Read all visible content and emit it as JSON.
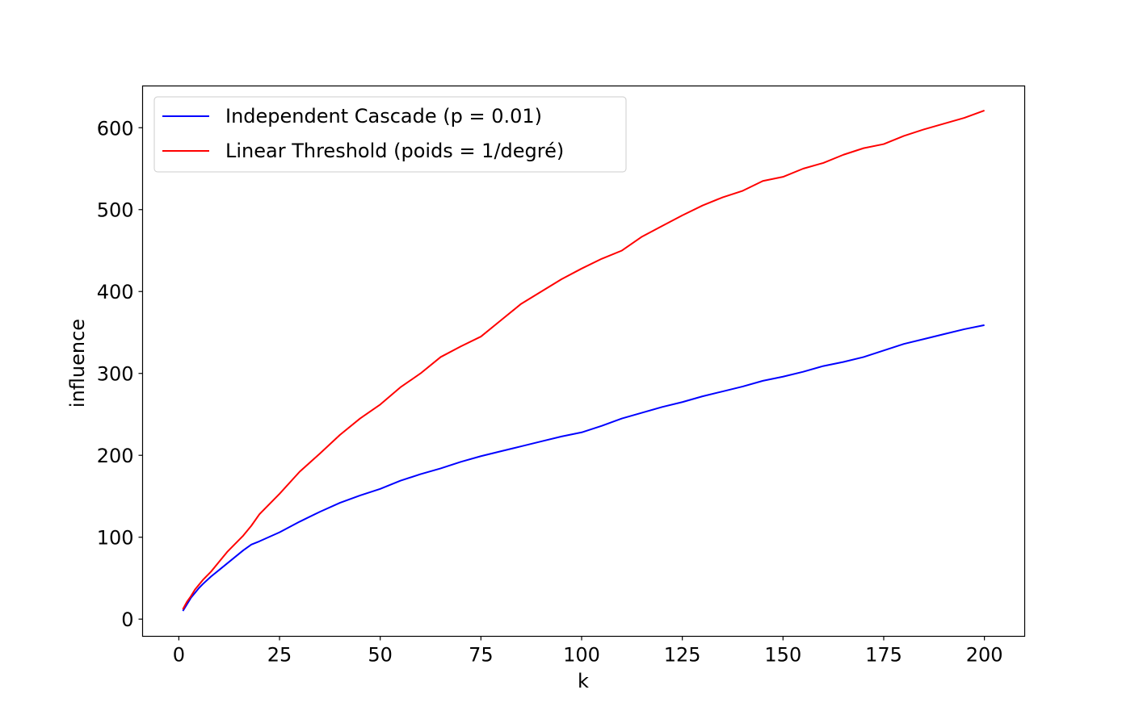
{
  "chart_data": {
    "type": "line",
    "title": "",
    "xlabel": "k",
    "ylabel": "influence",
    "xlim": [
      -9,
      210
    ],
    "ylim": [
      -21,
      651
    ],
    "xticks": [
      0,
      25,
      50,
      75,
      100,
      125,
      150,
      175,
      200
    ],
    "yticks": [
      0,
      100,
      200,
      300,
      400,
      500,
      600
    ],
    "grid": false,
    "legend_position": "top-left",
    "series": [
      {
        "name": "Independent Cascade (p = 0.01)",
        "color": "#0000ff",
        "x": [
          1,
          2,
          3,
          4,
          5,
          6,
          8,
          10,
          12,
          14,
          16,
          18,
          20,
          25,
          30,
          35,
          40,
          45,
          50,
          55,
          60,
          65,
          70,
          75,
          80,
          85,
          90,
          95,
          100,
          105,
          110,
          115,
          120,
          125,
          130,
          135,
          140,
          145,
          150,
          155,
          160,
          165,
          170,
          175,
          180,
          185,
          190,
          195,
          200
        ],
        "y": [
          10,
          18,
          26,
          32,
          38,
          43,
          52,
          60,
          68,
          76,
          84,
          91,
          95,
          106,
          119,
          131,
          142,
          151,
          159,
          169,
          177,
          184,
          192,
          199,
          205,
          211,
          217,
          223,
          228,
          236,
          245,
          252,
          259,
          265,
          272,
          278,
          284,
          291,
          296,
          302,
          309,
          314,
          320,
          328,
          336,
          342,
          348,
          354,
          359
        ]
      },
      {
        "name": "Linear Threshold (poids = 1/degré)",
        "color": "#ff0000",
        "x": [
          1,
          2,
          3,
          4,
          5,
          6,
          8,
          10,
          12,
          14,
          16,
          18,
          20,
          25,
          30,
          35,
          40,
          45,
          50,
          55,
          60,
          65,
          70,
          75,
          80,
          85,
          90,
          95,
          100,
          105,
          110,
          115,
          120,
          125,
          130,
          135,
          140,
          145,
          150,
          155,
          160,
          165,
          170,
          175,
          180,
          185,
          190,
          195,
          200
        ],
        "y": [
          12,
          21,
          28,
          36,
          42,
          48,
          58,
          70,
          82,
          92,
          102,
          114,
          128,
          153,
          180,
          202,
          225,
          245,
          262,
          283,
          300,
          320,
          333,
          345,
          365,
          385,
          400,
          415,
          428,
          440,
          450,
          467,
          480,
          493,
          505,
          515,
          523,
          535,
          540,
          550,
          557,
          567,
          575,
          580,
          590,
          598,
          605,
          612,
          621
        ]
      }
    ]
  }
}
